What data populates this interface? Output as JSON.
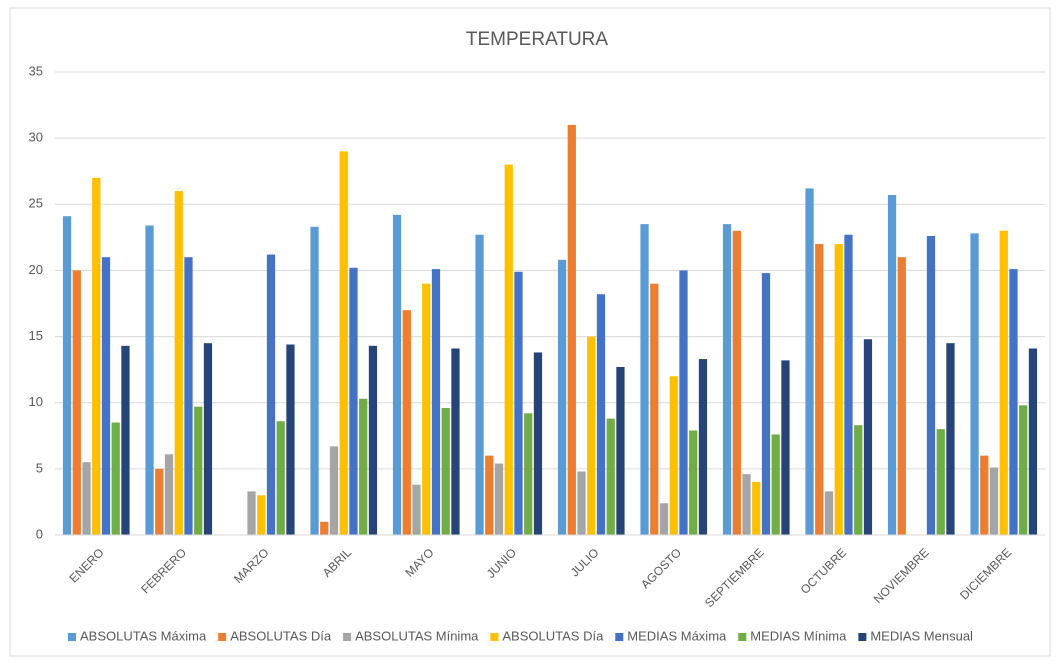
{
  "chart_data": {
    "type": "bar",
    "title": "TEMPERATURA",
    "categories": [
      "ENERO",
      "FEBRERO",
      "MARZO",
      "ABRIL",
      "MAYO",
      "JUNIO",
      "JULIO",
      "AGOSTO",
      "SEPTIEMBRE",
      "OCTUBRE",
      "NOVIEMBRE",
      "DICIEMBRE"
    ],
    "series": [
      {
        "name": "ABSOLUTAS Máxima",
        "color": "#5b9bd5",
        "values": [
          24.1,
          23.4,
          null,
          23.3,
          24.2,
          22.7,
          20.8,
          23.5,
          23.5,
          26.2,
          25.7,
          22.8
        ]
      },
      {
        "name": "ABSOLUTAS Día",
        "color": "#ed7d31",
        "values": [
          20,
          5,
          null,
          1,
          17,
          6,
          31,
          19,
          23,
          22,
          21,
          6
        ]
      },
      {
        "name": "ABSOLUTAS Mínima",
        "color": "#a5a5a5",
        "values": [
          5.5,
          6.1,
          3.3,
          6.7,
          3.8,
          5.4,
          4.8,
          2.4,
          4.6,
          3.3,
          null,
          5.1
        ]
      },
      {
        "name": "ABSOLUTAS Día",
        "color": "#ffc000",
        "values": [
          27,
          26,
          3,
          29,
          19,
          28,
          15,
          12,
          4,
          22,
          null,
          23
        ]
      },
      {
        "name": "MEDIAS Máxima",
        "color": "#4472c4",
        "values": [
          21,
          21,
          21.2,
          20.2,
          20.1,
          19.9,
          18.2,
          20,
          19.8,
          22.7,
          22.6,
          20.1
        ]
      },
      {
        "name": "MEDIAS Mínima",
        "color": "#70ad47",
        "values": [
          8.5,
          9.7,
          8.6,
          10.3,
          9.6,
          9.2,
          8.8,
          7.9,
          7.6,
          8.3,
          8,
          9.8
        ]
      },
      {
        "name": "MEDIAS Mensual",
        "color": "#264478",
        "values": [
          14.3,
          14.5,
          14.4,
          14.3,
          14.1,
          13.8,
          12.7,
          13.3,
          13.2,
          14.8,
          14.5,
          14.1
        ]
      }
    ],
    "ylim": [
      0,
      35
    ],
    "yticks": [
      0,
      5,
      10,
      15,
      20,
      25,
      30,
      35
    ],
    "grid": true,
    "legend": "bottom"
  }
}
